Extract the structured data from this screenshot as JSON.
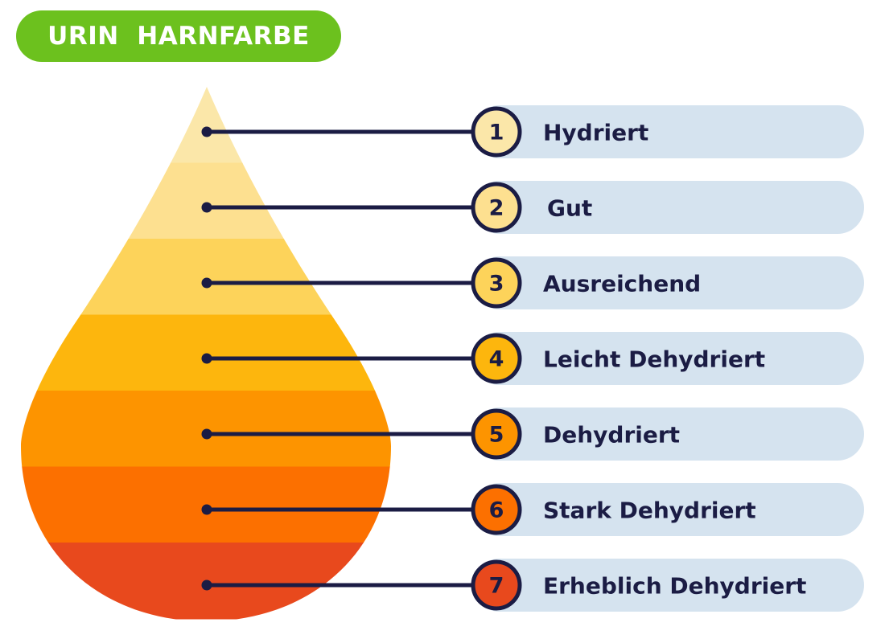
{
  "title": "URIN  HARNFARBE",
  "colors": {
    "title_bg": "#6cc11e",
    "pill_bg": "#d5e3ef",
    "line": "#1b1c44"
  },
  "levels": [
    {
      "number": "1",
      "label": "Hydriert",
      "color": "#fbe7a9"
    },
    {
      "number": "2",
      "label": "Gut",
      "color": "#fde090"
    },
    {
      "number": "3",
      "label": "Ausreichend",
      "color": "#fdd35a"
    },
    {
      "number": "4",
      "label": "Leicht Dehydriert",
      "color": "#fdb60d"
    },
    {
      "number": "5",
      "label": "Dehydriert",
      "color": "#fd9400"
    },
    {
      "number": "6",
      "label": "Stark Dehydriert",
      "color": "#fc7000"
    },
    {
      "number": "7",
      "label": "Erheblich Dehydriert",
      "color": "#e8491d"
    }
  ]
}
